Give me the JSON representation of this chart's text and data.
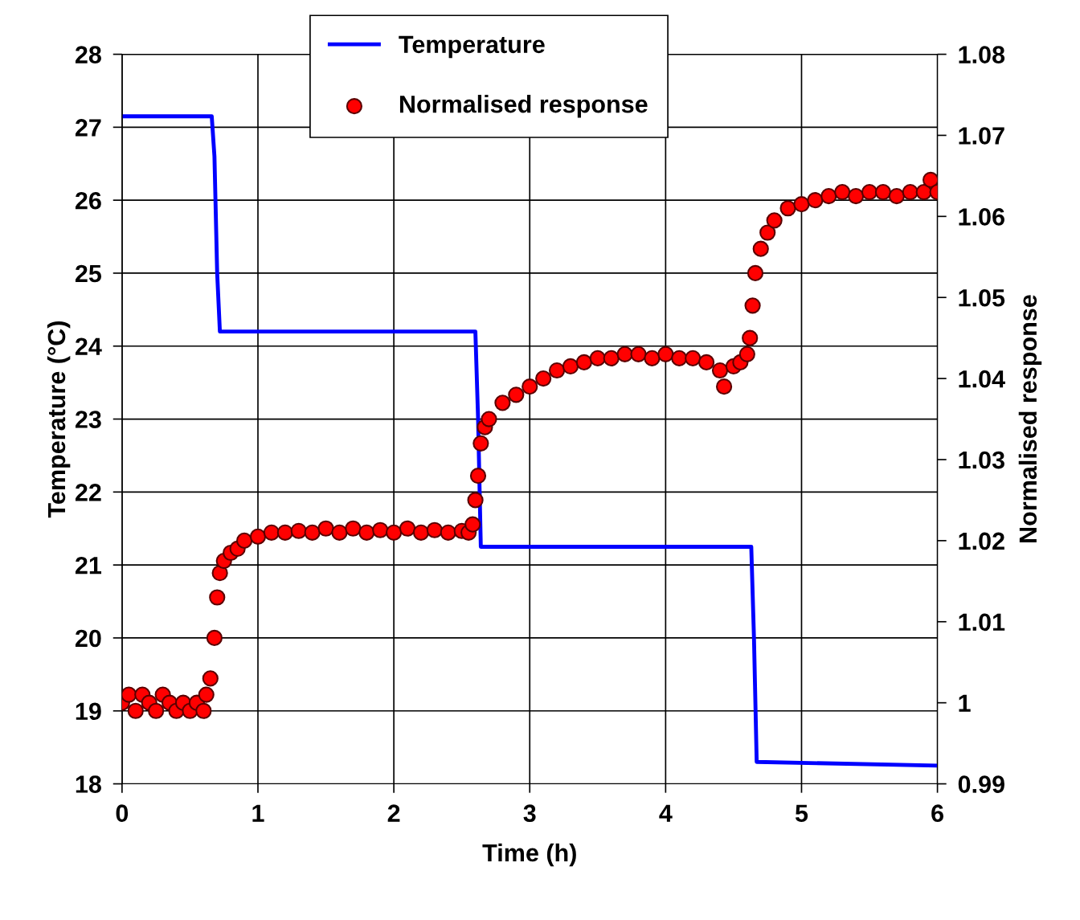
{
  "chart_data": {
    "type": "line",
    "xlabel": "Time (h)",
    "ylabel": "Temperature (°C)",
    "y2label": "Normalised response",
    "xlim": [
      0,
      6
    ],
    "xticks": [
      0,
      1,
      2,
      3,
      4,
      5,
      6
    ],
    "ylim": [
      18,
      28
    ],
    "yticks": [
      18,
      19,
      20,
      21,
      22,
      23,
      24,
      25,
      26,
      27,
      28
    ],
    "y2lim": [
      0.99,
      1.08
    ],
    "y2ticks": [
      0.99,
      1,
      1.01,
      1.02,
      1.03,
      1.04,
      1.05,
      1.06,
      1.07,
      1.08
    ],
    "grid": true,
    "legend": "top",
    "series": [
      {
        "name": "Temperature",
        "color": "#0000ff",
        "axis": "y",
        "marker": "none",
        "line_style": "solid",
        "x": [
          0,
          0.66,
          0.68,
          0.7,
          0.72,
          2.6,
          2.62,
          2.64,
          4.63,
          4.65,
          4.67,
          6
        ],
        "values": [
          27.15,
          27.15,
          26.6,
          25.0,
          24.2,
          24.2,
          23.0,
          21.25,
          21.25,
          20.0,
          18.3,
          18.25
        ]
      },
      {
        "name": "Normalised response",
        "type": "scatter",
        "color": "#ff0000",
        "axis": "y2",
        "marker": "circle",
        "x": [
          0,
          0.05,
          0.1,
          0.15,
          0.2,
          0.25,
          0.3,
          0.35,
          0.4,
          0.45,
          0.5,
          0.55,
          0.6,
          0.62,
          0.65,
          0.68,
          0.7,
          0.72,
          0.75,
          0.8,
          0.85,
          0.9,
          1.0,
          1.1,
          1.2,
          1.3,
          1.4,
          1.5,
          1.6,
          1.7,
          1.8,
          1.9,
          2.0,
          2.1,
          2.2,
          2.3,
          2.4,
          2.5,
          2.55,
          2.58,
          2.6,
          2.62,
          2.64,
          2.67,
          2.7,
          2.8,
          2.9,
          3.0,
          3.1,
          3.2,
          3.3,
          3.4,
          3.5,
          3.6,
          3.7,
          3.8,
          3.9,
          4.0,
          4.1,
          4.2,
          4.3,
          4.4,
          4.43,
          4.5,
          4.55,
          4.6,
          4.62,
          4.64,
          4.66,
          4.7,
          4.75,
          4.8,
          4.9,
          5.0,
          5.1,
          5.2,
          5.3,
          5.4,
          5.5,
          5.6,
          5.7,
          5.8,
          5.9,
          5.95,
          6.0
        ],
        "values": [
          1.0,
          1.001,
          0.999,
          1.001,
          1.0,
          0.999,
          1.001,
          1.0,
          0.999,
          1.0,
          0.999,
          1.0,
          0.999,
          1.001,
          1.003,
          1.008,
          1.013,
          1.016,
          1.0175,
          1.0185,
          1.019,
          1.02,
          1.0205,
          1.021,
          1.021,
          1.0212,
          1.021,
          1.0215,
          1.021,
          1.0215,
          1.021,
          1.0213,
          1.021,
          1.0215,
          1.021,
          1.0213,
          1.021,
          1.0212,
          1.021,
          1.022,
          1.025,
          1.028,
          1.032,
          1.034,
          1.035,
          1.037,
          1.038,
          1.039,
          1.04,
          1.041,
          1.0415,
          1.042,
          1.0425,
          1.0425,
          1.043,
          1.043,
          1.0425,
          1.043,
          1.0425,
          1.0425,
          1.042,
          1.041,
          1.039,
          1.0415,
          1.042,
          1.043,
          1.045,
          1.049,
          1.053,
          1.056,
          1.058,
          1.0595,
          1.061,
          1.0615,
          1.062,
          1.0625,
          1.063,
          1.0625,
          1.063,
          1.063,
          1.0625,
          1.063,
          1.063,
          1.0645,
          1.063
        ]
      }
    ]
  }
}
